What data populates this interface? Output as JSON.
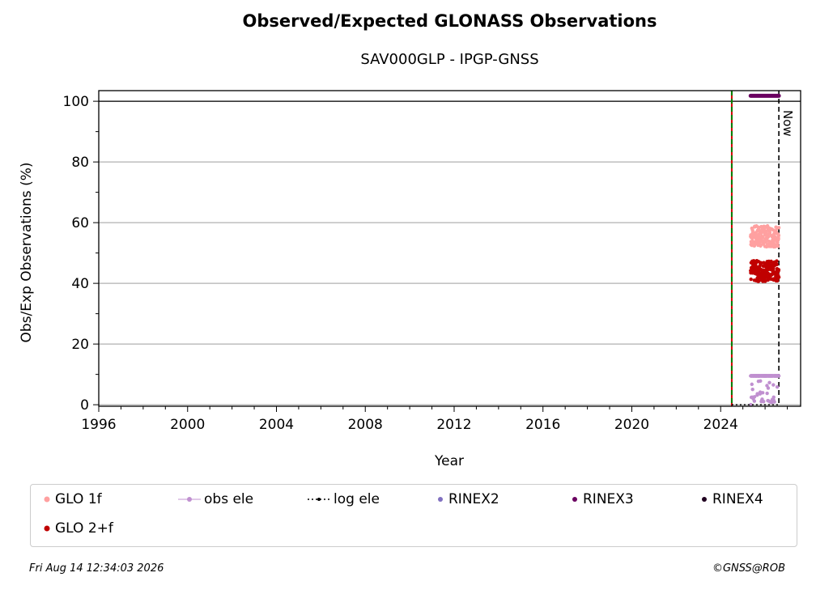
{
  "chart_data": {
    "type": "scatter",
    "title": "Observed/Expected GLONASS Observations",
    "subtitle": "SAV000GLP - IPGP-GNSS",
    "xlabel": "Year",
    "ylabel": "Obs/Exp Observations (%)",
    "xlim": [
      1996,
      2027.6
    ],
    "ylim": [
      -0.5,
      103.5
    ],
    "xticks": [
      1996,
      2000,
      2004,
      2008,
      2012,
      2016,
      2020,
      2024
    ],
    "yticks": [
      0,
      20,
      40,
      60,
      80,
      100
    ],
    "grid": "horizontal",
    "reference_line_y": 100,
    "install_date_x": 2024.5,
    "now_x": 2026.62,
    "now_label": "Now",
    "legend_position": "bottom",
    "series": [
      {
        "name": "GLO 1f",
        "color": "#ffa0a0",
        "x_start": 2025.35,
        "x_end": 2026.62,
        "y_mid": 55.5,
        "y_amp": 3.5
      },
      {
        "name": "GLO 2+f",
        "color": "#c00000",
        "x_start": 2025.35,
        "x_end": 2026.62,
        "y_mid": 44,
        "y_amp": 3.5
      },
      {
        "name": "obs ele",
        "color": "#c090d0",
        "x_start": 2025.35,
        "x_end": 2026.62,
        "y_mid": 9.5,
        "y_amp": 0
      },
      {
        "name": "log ele",
        "color": "#000000",
        "x_start": 2024.5,
        "x_end": 2026.62,
        "y_mid": 0,
        "y_amp": 0
      },
      {
        "name": "RINEX2",
        "color": "#8070c0"
      },
      {
        "name": "RINEX3",
        "color": "#6a0060",
        "x_start": 2025.35,
        "x_end": 2026.62,
        "y_mid": 101.8,
        "y_amp": 0
      },
      {
        "name": "RINEX4",
        "color": "#200020"
      }
    ]
  },
  "footer": {
    "date": "Fri Aug 14 12:34:03 2026",
    "credit": "©GNSS@ROB"
  }
}
